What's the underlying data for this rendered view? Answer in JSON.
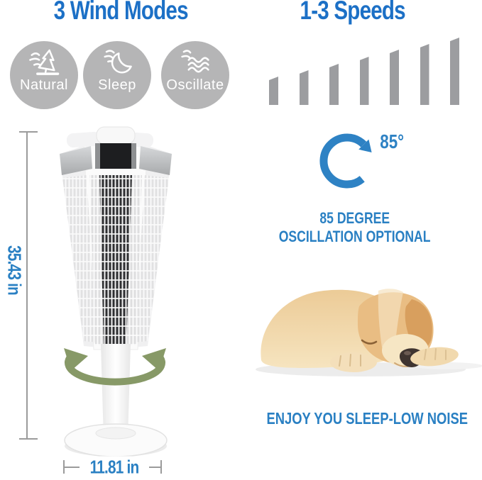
{
  "colors": {
    "heading_blue": "#1c70c6",
    "accent_blue": "#2a80c3",
    "circle_gray": "#b5b5b6",
    "bar_gray": "#9c9da0",
    "oscillate_green": "#879967",
    "dimension_gray": "#9b9b9b"
  },
  "wind_modes": {
    "title": "3 Wind Modes",
    "modes": [
      {
        "label": "Natural",
        "icon": "pine-tree-wind-icon"
      },
      {
        "label": "Sleep",
        "icon": "crescent-moon-wind-icon"
      },
      {
        "label": "Oscillate",
        "icon": "breeze-waves-icon"
      }
    ]
  },
  "speeds": {
    "title": "1-3 Speeds",
    "chart_data": {
      "type": "bar",
      "bar_count": 7,
      "relative_heights": [
        40,
        49,
        58,
        68,
        78,
        86,
        95
      ]
    }
  },
  "oscillation": {
    "angle_label": "85°",
    "caption_line1": "85 DEGREE",
    "caption_line2": "OSCILLATION OPTIONAL"
  },
  "sleep_section": {
    "caption": "ENJOY YOU SLEEP-LOW NOISE",
    "photo": "sleeping-puppy"
  },
  "dimensions": {
    "height": "35.43 in",
    "width": "11.81 in"
  },
  "product": {
    "illustration": "white-tower-fan"
  }
}
